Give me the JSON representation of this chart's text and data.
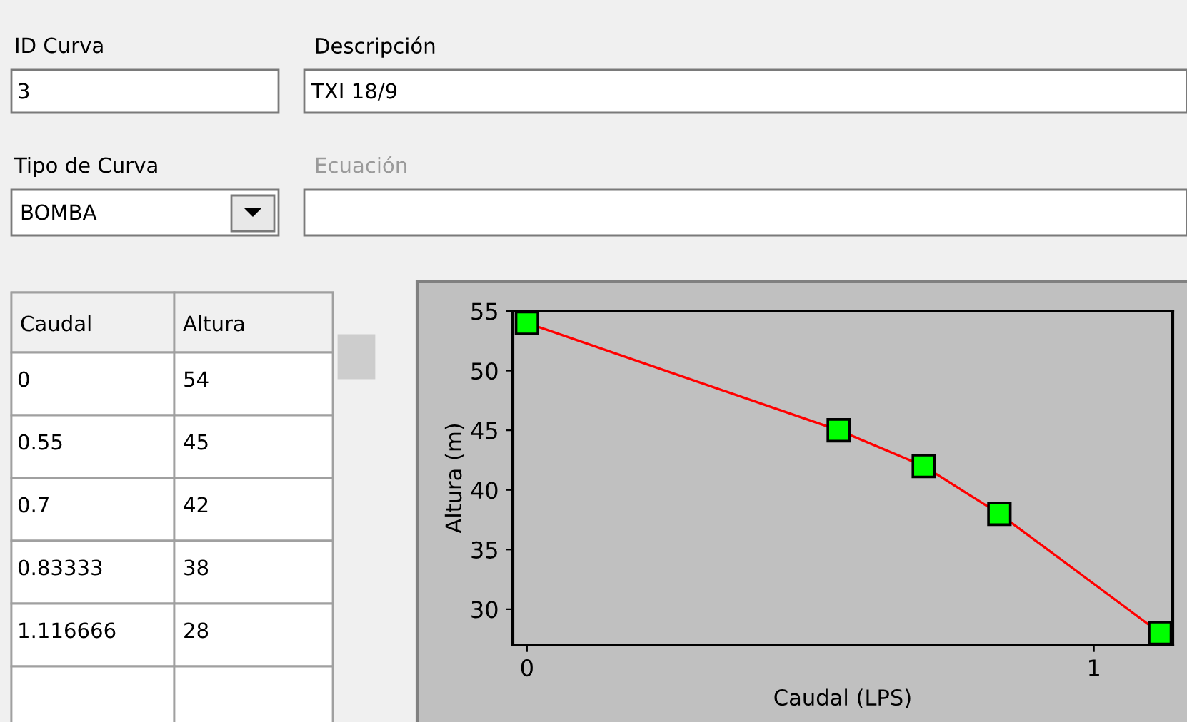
{
  "chart_data": {
    "type": "line",
    "xlabel": "Caudal (LPS)",
    "ylabel": "Altura (m)",
    "annotations": [
      "ID Curva",
      "3",
      "Descripción",
      "TXI 18/9",
      "Tipo de Curva",
      "BOMBA",
      "Ecuación",
      "Caudal",
      "Altura",
      "0",
      "54",
      "0.55",
      "45",
      "0.7",
      "42",
      "0.83333",
      "38",
      "1.116666",
      "28"
    ],
    "x": [
      0,
      0.55,
      0.7,
      0.83333,
      1.116666
    ],
    "series": [
      {
        "color": "#ff0000",
        "values": [
          54,
          45,
          42,
          38,
          28
        ]
      }
    ],
    "xlim": [
      -0.025,
      1.139
    ],
    "xticks": [
      0,
      1
    ],
    "ylim": [
      27,
      55
    ],
    "yticks": [
      30,
      35,
      40,
      45,
      50,
      55
    ],
    "marker": "square",
    "line_style": "solid",
    "grid": false,
    "legend": false
  }
}
